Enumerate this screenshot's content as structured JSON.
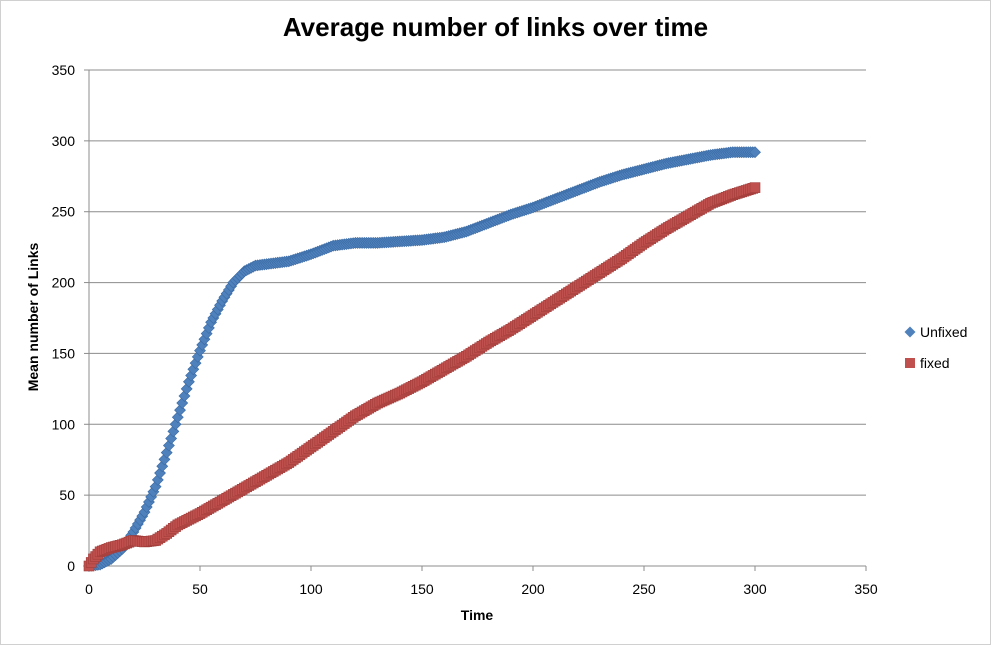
{
  "chart_data": {
    "type": "scatter",
    "title": "Average number of links over time",
    "xlabel": "Time",
    "ylabel": "Mean number of Links",
    "xlim": [
      0,
      350
    ],
    "ylim": [
      0,
      350
    ],
    "xticks": [
      0,
      50,
      100,
      150,
      200,
      250,
      300,
      350
    ],
    "yticks": [
      0,
      50,
      100,
      150,
      200,
      250,
      300,
      350
    ],
    "grid": "horizontal",
    "legend_position": "right",
    "series": [
      {
        "name": "Unfixed",
        "marker": "diamond",
        "color": "#4f81bd",
        "knots": [
          [
            0,
            0
          ],
          [
            5,
            1
          ],
          [
            10,
            5
          ],
          [
            15,
            12
          ],
          [
            20,
            24
          ],
          [
            25,
            38
          ],
          [
            30,
            56
          ],
          [
            35,
            80
          ],
          [
            40,
            105
          ],
          [
            45,
            130
          ],
          [
            50,
            152
          ],
          [
            55,
            172
          ],
          [
            60,
            187
          ],
          [
            65,
            200
          ],
          [
            70,
            208
          ],
          [
            75,
            212
          ],
          [
            80,
            213
          ],
          [
            90,
            215
          ],
          [
            100,
            220
          ],
          [
            110,
            226
          ],
          [
            120,
            228
          ],
          [
            130,
            228
          ],
          [
            140,
            229
          ],
          [
            150,
            230
          ],
          [
            160,
            232
          ],
          [
            170,
            236
          ],
          [
            180,
            242
          ],
          [
            190,
            248
          ],
          [
            200,
            253
          ],
          [
            210,
            259
          ],
          [
            220,
            265
          ],
          [
            230,
            271
          ],
          [
            240,
            276
          ],
          [
            250,
            280
          ],
          [
            260,
            284
          ],
          [
            270,
            287
          ],
          [
            280,
            290
          ],
          [
            290,
            292
          ],
          [
            300,
            292
          ]
        ]
      },
      {
        "name": "fixed",
        "marker": "square",
        "color": "#c0504d",
        "knots": [
          [
            0,
            0
          ],
          [
            2,
            5
          ],
          [
            5,
            10
          ],
          [
            10,
            13
          ],
          [
            15,
            15
          ],
          [
            20,
            18
          ],
          [
            25,
            17
          ],
          [
            30,
            18
          ],
          [
            35,
            23
          ],
          [
            40,
            29
          ],
          [
            50,
            37
          ],
          [
            60,
            46
          ],
          [
            70,
            55
          ],
          [
            80,
            64
          ],
          [
            90,
            73
          ],
          [
            100,
            84
          ],
          [
            110,
            95
          ],
          [
            120,
            106
          ],
          [
            130,
            115
          ],
          [
            140,
            122
          ],
          [
            150,
            130
          ],
          [
            160,
            139
          ],
          [
            170,
            148
          ],
          [
            180,
            158
          ],
          [
            190,
            167
          ],
          [
            200,
            177
          ],
          [
            210,
            187
          ],
          [
            220,
            197
          ],
          [
            230,
            207
          ],
          [
            240,
            217
          ],
          [
            250,
            228
          ],
          [
            260,
            238
          ],
          [
            270,
            247
          ],
          [
            280,
            256
          ],
          [
            290,
            262
          ],
          [
            300,
            267
          ]
        ]
      }
    ]
  }
}
